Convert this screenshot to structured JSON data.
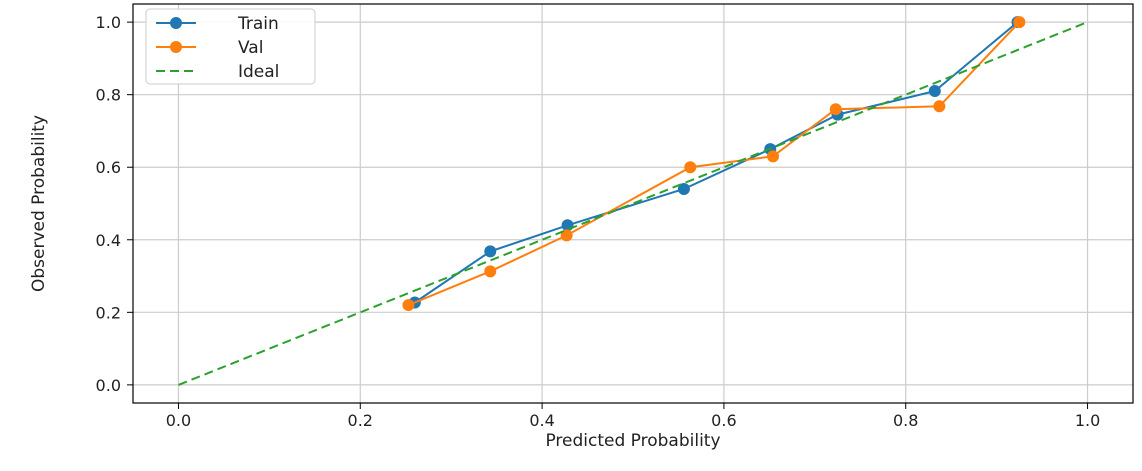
{
  "chart_data": {
    "type": "line",
    "xlabel": "Predicted Probability",
    "ylabel": "Observed Probability",
    "xlim": [
      -0.05,
      1.05
    ],
    "ylim": [
      -0.05,
      1.05
    ],
    "xticks": [
      0.0,
      0.2,
      0.4,
      0.6,
      0.8,
      1.0
    ],
    "xtick_labels": [
      "0.0",
      "0.2",
      "0.4",
      "0.6",
      "0.8",
      "1.0"
    ],
    "yticks": [
      0.0,
      0.2,
      0.4,
      0.6,
      0.8,
      1.0
    ],
    "ytick_labels": [
      "0.0",
      "0.2",
      "0.4",
      "0.6",
      "0.8",
      "1.0"
    ],
    "grid": true,
    "legend_position": "top-left",
    "series": [
      {
        "name": "Train",
        "color": "#1f77b4",
        "style": "solid-markers",
        "x": [
          0.26,
          0.343,
          0.428,
          0.556,
          0.651,
          0.725,
          0.832,
          0.923
        ],
        "y": [
          0.227,
          0.368,
          0.44,
          0.54,
          0.65,
          0.745,
          0.81,
          1.0
        ]
      },
      {
        "name": "Val",
        "color": "#ff7f0e",
        "style": "solid-markers",
        "x": [
          0.253,
          0.343,
          0.427,
          0.563,
          0.654,
          0.723,
          0.837,
          0.925
        ],
        "y": [
          0.22,
          0.313,
          0.412,
          0.6,
          0.63,
          0.76,
          0.768,
          1.0
        ]
      },
      {
        "name": "Ideal",
        "color": "#2ca02c",
        "style": "dashed",
        "x": [
          0.0,
          1.0
        ],
        "y": [
          0.0,
          1.0
        ]
      }
    ]
  }
}
